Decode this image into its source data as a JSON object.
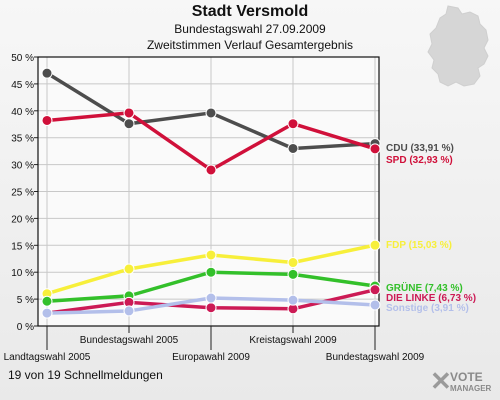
{
  "title": "Stadt Versmold",
  "subtitle": "Bundestagswahl 27.09.2009",
  "subtitle2": "Zweitstimmen Verlauf Gesamtergebnis",
  "footer": "19 von 19 Schnellmeldungen",
  "brand": {
    "line1": "VOTE",
    "line2": "MANAGER"
  },
  "chart_data": {
    "type": "line",
    "x": [
      "Landtagswahl 2005",
      "Bundestagswahl 2005",
      "Europawahl 2009",
      "Kreistagswahl 2009",
      "Bundestagswahl 2009"
    ],
    "ylim": [
      0,
      50
    ],
    "yticks": [
      "0 %",
      "5 %",
      "10 %",
      "15 %",
      "20 %",
      "25 %",
      "30 %",
      "35 %",
      "40 %",
      "45 %",
      "50 %"
    ],
    "grid": true,
    "series": [
      {
        "name": "CDU",
        "label": "CDU (33,91 %)",
        "color": "#4d4d4d",
        "values": [
          47.0,
          37.6,
          39.6,
          33.0,
          33.91
        ]
      },
      {
        "name": "SPD",
        "label": "SPD (32,93 %)",
        "color": "#d0103a",
        "values": [
          38.2,
          39.6,
          29.0,
          37.6,
          32.93
        ]
      },
      {
        "name": "FDP",
        "label": "FDP (15,03 %)",
        "color": "#f7ef3a",
        "values": [
          6.0,
          10.6,
          13.2,
          11.8,
          15.03
        ]
      },
      {
        "name": "GRÜNE",
        "label": "GRÜNE (7,43 %)",
        "color": "#33c02a",
        "values": [
          4.6,
          5.6,
          10.0,
          9.6,
          7.43
        ]
      },
      {
        "name": "DIE LINKE",
        "label": "DIE LINKE (6,73 %)",
        "color": "#cc1a55",
        "values": [
          2.4,
          4.4,
          3.4,
          3.2,
          6.73
        ]
      },
      {
        "name": "Sonstige",
        "label": "Sonstige (3,91 %)",
        "color": "#b3bfea",
        "values": [
          2.4,
          2.8,
          5.2,
          4.8,
          3.91
        ]
      }
    ]
  }
}
